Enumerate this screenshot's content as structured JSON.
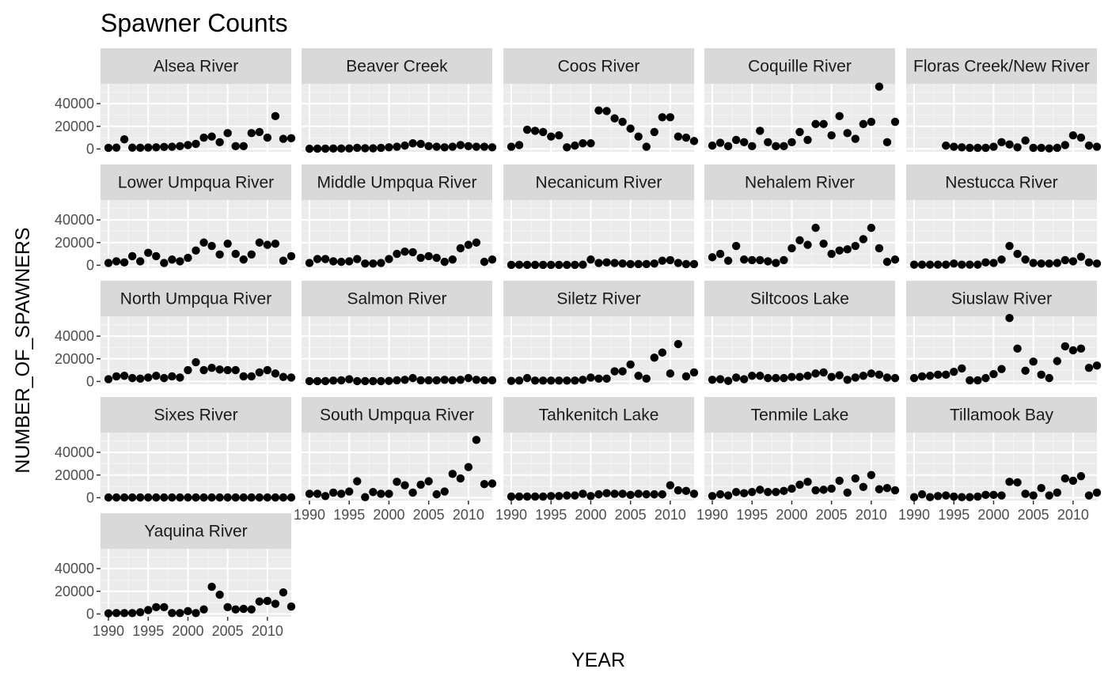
{
  "chart_data": {
    "type": "scatter",
    "title": "Spawner Counts",
    "xlabel": "YEAR",
    "ylabel": "NUMBER_OF_SPAWNERS",
    "xlim": [
      1989,
      2013
    ],
    "ylim": [
      -2500,
      57500
    ],
    "x_ticks": [
      1990,
      1995,
      2000,
      2005,
      2010
    ],
    "y_ticks": [
      0,
      20000,
      40000
    ],
    "x_tick_labels": [
      "1990",
      "1995",
      "2000",
      "2005",
      "2010"
    ],
    "y_tick_labels": [
      "0",
      "20000",
      "40000"
    ],
    "facet_columns": 5,
    "panels": [
      {
        "name": "Alsea River",
        "x": [
          1990,
          1991,
          1992,
          1993,
          1994,
          1995,
          1996,
          1997,
          1998,
          1999,
          2000,
          2001,
          2002,
          2003,
          2004,
          2005,
          2006,
          2007,
          2008,
          2009,
          2010,
          2011,
          2012,
          2013
        ],
        "y": [
          1000,
          1200,
          8500,
          1200,
          1100,
          1300,
          1500,
          1800,
          2000,
          2500,
          3500,
          4500,
          10000,
          11000,
          6000,
          14000,
          2500,
          2500,
          14000,
          15000,
          10000,
          29000,
          9000,
          9500
        ]
      },
      {
        "name": "Beaver Creek",
        "x": [
          1990,
          1991,
          1992,
          1993,
          1994,
          1995,
          1996,
          1997,
          1998,
          1999,
          2000,
          2001,
          2002,
          2003,
          2004,
          2005,
          2006,
          2007,
          2008,
          2009,
          2010,
          2011,
          2012,
          2013
        ],
        "y": [
          200,
          300,
          300,
          400,
          400,
          500,
          1000,
          700,
          600,
          1000,
          1500,
          2000,
          3000,
          5000,
          4500,
          2500,
          2000,
          1500,
          2000,
          3500,
          2500,
          2000,
          2000,
          1500
        ]
      },
      {
        "name": "Coos River",
        "x": [
          1990,
          1991,
          1992,
          1993,
          1994,
          1995,
          1996,
          1997,
          1998,
          1999,
          2000,
          2001,
          2002,
          2003,
          2004,
          2005,
          2006,
          2007,
          2008,
          2009,
          2010,
          2011,
          2012,
          2013
        ],
        "y": [
          2000,
          3500,
          17000,
          16000,
          15000,
          11000,
          12000,
          1500,
          3000,
          5000,
          5000,
          34000,
          33500,
          27000,
          24000,
          18000,
          11000,
          2000,
          15000,
          28000,
          28000,
          11000,
          10000,
          7000
        ]
      },
      {
        "name": "Coquille River",
        "x": [
          1990,
          1991,
          1992,
          1993,
          1994,
          1995,
          1996,
          1997,
          1998,
          1999,
          2000,
          2001,
          2002,
          2003,
          2004,
          2005,
          2006,
          2007,
          2008,
          2009,
          2010,
          2011,
          2012,
          2013
        ],
        "y": [
          3000,
          5500,
          2500,
          8000,
          6000,
          2500,
          16000,
          6000,
          2500,
          2500,
          6000,
          15000,
          8000,
          22000,
          22000,
          12000,
          29000,
          14000,
          9000,
          22000,
          24000,
          55000,
          6000,
          24000
        ]
      },
      {
        "name": "Floras Creek/New River",
        "x": [
          1994,
          1995,
          1996,
          1997,
          1998,
          1999,
          2000,
          2001,
          2002,
          2003,
          2004,
          2005,
          2006,
          2007,
          2008,
          2009,
          2010,
          2011,
          2012,
          2013
        ],
        "y": [
          3000,
          2000,
          1500,
          1000,
          1000,
          1000,
          2000,
          6000,
          4000,
          1500,
          7500,
          1000,
          1000,
          500,
          1000,
          3500,
          12000,
          10000,
          3000,
          2000
        ]
      },
      {
        "name": "Lower Umpqua River",
        "x": [
          1990,
          1991,
          1992,
          1993,
          1994,
          1995,
          1996,
          1997,
          1998,
          1999,
          2000,
          2001,
          2002,
          2003,
          2004,
          2005,
          2006,
          2007,
          2008,
          2009,
          2010,
          2011,
          2012,
          2013
        ],
        "y": [
          2000,
          3500,
          2500,
          8000,
          3500,
          11000,
          8000,
          2000,
          5000,
          3500,
          6500,
          13000,
          20000,
          17000,
          9500,
          19000,
          10000,
          5000,
          9500,
          20000,
          18000,
          19000,
          4000,
          8000
        ]
      },
      {
        "name": "Middle Umpqua River",
        "x": [
          1990,
          1991,
          1992,
          1993,
          1994,
          1995,
          1996,
          1997,
          1998,
          1999,
          2000,
          2001,
          2002,
          2003,
          2004,
          2005,
          2006,
          2007,
          2008,
          2009,
          2010,
          2011,
          2012,
          2013
        ],
        "y": [
          2000,
          5500,
          5500,
          3500,
          3000,
          3500,
          5500,
          1500,
          1500,
          2000,
          5500,
          10000,
          12000,
          11500,
          6500,
          8000,
          6500,
          3000,
          5000,
          15000,
          18000,
          20000,
          3000,
          5000
        ]
      },
      {
        "name": "Necanicum River",
        "x": [
          1990,
          1991,
          1992,
          1993,
          1994,
          1995,
          1996,
          1997,
          1998,
          1999,
          2000,
          2001,
          2002,
          2003,
          2004,
          2005,
          2006,
          2007,
          2008,
          2009,
          2010,
          2011,
          2012,
          2013
        ],
        "y": [
          300,
          400,
          300,
          300,
          300,
          300,
          300,
          300,
          300,
          500,
          5000,
          2000,
          2500,
          2000,
          1500,
          1000,
          1000,
          1000,
          1500,
          4000,
          4500,
          2000,
          1000,
          1000
        ]
      },
      {
        "name": "Nehalem River",
        "x": [
          1990,
          1991,
          1992,
          1993,
          1994,
          1995,
          1996,
          1997,
          1998,
          1999,
          2000,
          2001,
          2002,
          2003,
          2004,
          2005,
          2006,
          2007,
          2008,
          2009,
          2010,
          2011,
          2012,
          2013
        ],
        "y": [
          7000,
          10000,
          4000,
          17000,
          5000,
          4500,
          4500,
          3500,
          2000,
          4500,
          15000,
          22000,
          18000,
          33000,
          19000,
          10000,
          13000,
          14000,
          17000,
          23000,
          33000,
          15000,
          3000,
          5000
        ]
      },
      {
        "name": "Nestucca River",
        "x": [
          1990,
          1991,
          1992,
          1993,
          1994,
          1995,
          1996,
          1997,
          1998,
          1999,
          2000,
          2001,
          2002,
          2003,
          2004,
          2005,
          2006,
          2007,
          2008,
          2009,
          2010,
          2011,
          2012,
          2013
        ],
        "y": [
          500,
          500,
          500,
          500,
          500,
          1500,
          500,
          500,
          500,
          2500,
          2000,
          5000,
          17000,
          10000,
          5000,
          2000,
          1500,
          1500,
          2000,
          4500,
          3500,
          7500,
          2500,
          1500
        ]
      },
      {
        "name": "North Umpqua River",
        "x": [
          1990,
          1991,
          1992,
          1993,
          1994,
          1995,
          1996,
          1997,
          1998,
          1999,
          2000,
          2001,
          2002,
          2003,
          2004,
          2005,
          2006,
          2007,
          2008,
          2009,
          2010,
          2011,
          2012,
          2013
        ],
        "y": [
          2000,
          4500,
          5000,
          3000,
          2500,
          3500,
          5000,
          3000,
          4500,
          3500,
          10000,
          17000,
          10000,
          12000,
          10500,
          10000,
          10000,
          4500,
          4500,
          8000,
          10000,
          7000,
          4000,
          3500
        ]
      },
      {
        "name": "Salmon River",
        "x": [
          1990,
          1991,
          1992,
          1993,
          1994,
          1995,
          1996,
          1997,
          1998,
          1999,
          2000,
          2001,
          2002,
          2003,
          2004,
          2005,
          2006,
          2007,
          2008,
          2009,
          2010,
          2011,
          2012,
          2013
        ],
        "y": [
          300,
          300,
          300,
          800,
          1000,
          2000,
          300,
          300,
          300,
          300,
          500,
          1000,
          1500,
          3000,
          1000,
          1000,
          1000,
          1500,
          1000,
          1500,
          3000,
          1500,
          1000,
          1000
        ]
      },
      {
        "name": "Siletz River",
        "x": [
          1990,
          1991,
          1992,
          1993,
          1994,
          1995,
          1996,
          1997,
          1998,
          1999,
          2000,
          2001,
          2002,
          2003,
          2004,
          2005,
          2006,
          2007,
          2008,
          2009,
          2010,
          2011,
          2012,
          2013
        ],
        "y": [
          500,
          800,
          3000,
          800,
          800,
          800,
          800,
          800,
          800,
          1500,
          3500,
          2500,
          2500,
          9000,
          9000,
          15000,
          5000,
          2500,
          21000,
          25500,
          7000,
          33000,
          4500,
          8000
        ]
      },
      {
        "name": "Siltcoos Lake",
        "x": [
          1990,
          1991,
          1992,
          1993,
          1994,
          1995,
          1996,
          1997,
          1998,
          1999,
          2000,
          2001,
          2002,
          2003,
          2004,
          2005,
          2006,
          2007,
          2008,
          2009,
          2010,
          2011,
          2012,
          2013
        ],
        "y": [
          1500,
          2000,
          500,
          3500,
          2000,
          5000,
          5000,
          3000,
          3000,
          3000,
          4000,
          4000,
          5000,
          7000,
          8000,
          4000,
          5500,
          1500,
          3500,
          5000,
          7000,
          6000,
          3500,
          3000
        ]
      },
      {
        "name": "Siuslaw River",
        "x": [
          1990,
          1991,
          1992,
          1993,
          1994,
          1995,
          1996,
          1997,
          1998,
          1999,
          2000,
          2001,
          2002,
          2003,
          2004,
          2005,
          2006,
          2007,
          2008,
          2009,
          2010,
          2011,
          2012,
          2013
        ],
        "y": [
          3000,
          4500,
          5000,
          6000,
          6000,
          8500,
          11500,
          1000,
          1000,
          3000,
          6500,
          11000,
          56000,
          29000,
          9500,
          17500,
          6000,
          3000,
          18000,
          31000,
          27500,
          29000,
          12000,
          14000
        ]
      },
      {
        "name": "Sixes River",
        "x": [
          1990,
          1991,
          1992,
          1993,
          1994,
          1995,
          1996,
          1997,
          1998,
          1999,
          2000,
          2001,
          2002,
          2003,
          2004,
          2005,
          2006,
          2007,
          2008,
          2009,
          2010,
          2011,
          2012,
          2013
        ],
        "y": [
          200,
          200,
          200,
          200,
          200,
          200,
          200,
          200,
          200,
          200,
          200,
          200,
          200,
          200,
          200,
          200,
          200,
          200,
          200,
          200,
          200,
          200,
          200,
          200
        ]
      },
      {
        "name": "South Umpqua River",
        "x": [
          1990,
          1991,
          1992,
          1993,
          1994,
          1995,
          1996,
          1997,
          1998,
          1999,
          2000,
          2001,
          2002,
          2003,
          2004,
          2005,
          2006,
          2007,
          2008,
          2009,
          2010,
          2011,
          2012,
          2013
        ],
        "y": [
          3500,
          3500,
          1500,
          4500,
          3500,
          5500,
          14500,
          500,
          5000,
          3500,
          3500,
          14000,
          11000,
          4500,
          11500,
          14500,
          3000,
          5500,
          21000,
          17000,
          27000,
          51000,
          12000,
          12500
        ]
      },
      {
        "name": "Tahkenitch Lake",
        "x": [
          1990,
          1991,
          1992,
          1993,
          1994,
          1995,
          1996,
          1997,
          1998,
          1999,
          2000,
          2001,
          2002,
          2003,
          2004,
          2005,
          2006,
          2007,
          2008,
          2009,
          2010,
          2011,
          2012,
          2013
        ],
        "y": [
          1000,
          1000,
          1000,
          1000,
          1000,
          1500,
          1500,
          2000,
          2000,
          3500,
          1500,
          3000,
          4000,
          3500,
          3500,
          2500,
          3500,
          3000,
          3000,
          3000,
          11000,
          6500,
          6000,
          3500
        ]
      },
      {
        "name": "Tenmile Lake",
        "x": [
          1990,
          1991,
          1992,
          1993,
          1994,
          1995,
          1996,
          1997,
          1998,
          1999,
          2000,
          2001,
          2002,
          2003,
          2004,
          2005,
          2006,
          2007,
          2008,
          2009,
          2010,
          2011,
          2012,
          2013
        ],
        "y": [
          1500,
          3000,
          2000,
          5000,
          4000,
          5000,
          7000,
          5000,
          5000,
          6000,
          8000,
          11500,
          14000,
          6500,
          7000,
          8000,
          15000,
          4500,
          17000,
          9500,
          20000,
          7500,
          8500,
          6500
        ]
      },
      {
        "name": "Tillamook Bay",
        "x": [
          1990,
          1991,
          1992,
          1993,
          1994,
          1995,
          1996,
          1997,
          1998,
          1999,
          2000,
          2001,
          2002,
          2003,
          2004,
          2005,
          2006,
          2007,
          2008,
          2009,
          2010,
          2011,
          2012,
          2013
        ],
        "y": [
          500,
          3000,
          500,
          1500,
          2000,
          1000,
          500,
          500,
          1000,
          2500,
          2500,
          2000,
          14000,
          13500,
          3500,
          2000,
          8500,
          2000,
          4500,
          17000,
          15000,
          19000,
          2000,
          4500
        ]
      },
      {
        "name": "Yaquina River",
        "x": [
          1990,
          1991,
          1992,
          1993,
          1994,
          1995,
          1996,
          1997,
          1998,
          1999,
          2000,
          2001,
          2002,
          2003,
          2004,
          2005,
          2006,
          2007,
          2008,
          2009,
          2010,
          2011,
          2012,
          2013
        ],
        "y": [
          500,
          800,
          800,
          800,
          1500,
          3500,
          6000,
          6000,
          800,
          800,
          2500,
          800,
          4000,
          24000,
          17000,
          6000,
          4000,
          4500,
          4000,
          11000,
          11500,
          9000,
          19000,
          6500
        ]
      }
    ]
  }
}
